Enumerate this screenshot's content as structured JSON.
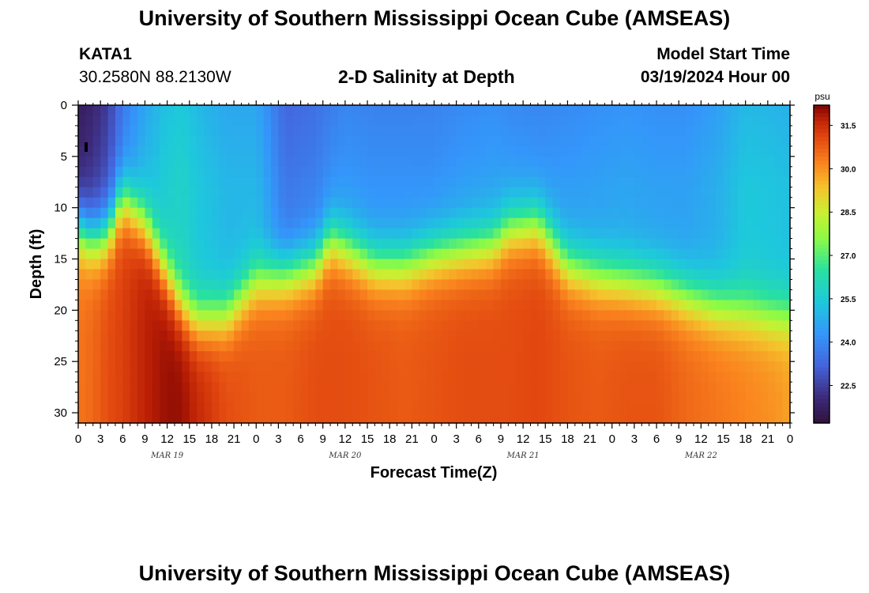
{
  "header": {
    "title": "University of Southern Mississippi Ocean Cube (AMSEAS)",
    "station_id": "KATA1",
    "station_coords": "30.2580N  88.2130W",
    "plot_subtitle": "2-D Salinity at Depth",
    "model_start_label": "Model Start Time",
    "model_start_value": "03/19/2024 Hour 00"
  },
  "footer": {
    "title": "University of Southern Mississippi Ocean Cube (AMSEAS)"
  },
  "colors": {
    "background": "#ffffff",
    "axis": "#000000"
  },
  "chart_data": {
    "type": "heatmap",
    "title": "2-D Salinity at Depth",
    "xlabel": "Forecast Time(Z)",
    "ylabel": "Depth (ft)",
    "x_range_hours": [
      0,
      96
    ],
    "ylim": [
      0,
      31
    ],
    "x_tick_labels": [
      "0",
      "3",
      "6",
      "9",
      "12",
      "15",
      "18",
      "21",
      "0",
      "3",
      "6",
      "9",
      "12",
      "15",
      "18",
      "21",
      "0",
      "3",
      "6",
      "9",
      "12",
      "15",
      "18",
      "21",
      "0",
      "3",
      "6",
      "9",
      "12",
      "15",
      "18",
      "21",
      "0"
    ],
    "x_tick_hours": [
      0,
      3,
      6,
      9,
      12,
      15,
      18,
      21,
      24,
      27,
      30,
      33,
      36,
      39,
      42,
      45,
      48,
      51,
      54,
      57,
      60,
      63,
      66,
      69,
      72,
      75,
      78,
      81,
      84,
      87,
      90,
      93,
      96
    ],
    "date_labels": [
      {
        "label": "MAR 19",
        "hour": 12
      },
      {
        "label": "MAR 20",
        "hour": 36
      },
      {
        "label": "MAR 21",
        "hour": 60
      },
      {
        "label": "MAR 22",
        "hour": 84
      }
    ],
    "y_ticks": [
      0,
      5,
      10,
      15,
      20,
      25,
      30
    ],
    "y_tick_labels": [
      "0",
      "5",
      "10",
      "15",
      "20",
      "25",
      "30"
    ],
    "colorbar": {
      "unit": "psu",
      "range": [
        21.2,
        32.2
      ],
      "ticks": [
        31.5,
        30.0,
        28.5,
        27.0,
        25.5,
        24.0,
        22.5
      ],
      "tick_labels": [
        "31.5",
        "30.0",
        "28.5",
        "27.0",
        "25.5",
        "24.0",
        "22.5"
      ]
    },
    "profile": {
      "hours": [
        0,
        2,
        4,
        6,
        9,
        12,
        14,
        16,
        20,
        24,
        28,
        32,
        34,
        36,
        40,
        44,
        48,
        52,
        56,
        58,
        62,
        66,
        70,
        74,
        78,
        82,
        86,
        90,
        94,
        96
      ],
      "halocline_ft": [
        12.0,
        13.0,
        12.5,
        9.0,
        11.5,
        16.5,
        19.5,
        21.0,
        20.5,
        17.0,
        16.5,
        15.5,
        13.0,
        13.8,
        15.5,
        15.5,
        14.5,
        14.0,
        13.5,
        12.0,
        11.5,
        15.5,
        16.5,
        17.0,
        17.5,
        18.5,
        19.5,
        20.0,
        20.5,
        20.5
      ],
      "surface_psu": [
        22.0,
        22.3,
        22.8,
        24.0,
        25.0,
        25.6,
        25.8,
        25.4,
        25.0,
        25.0,
        23.6,
        23.8,
        24.1,
        24.3,
        24.2,
        24.2,
        24.2,
        24.4,
        24.5,
        24.4,
        24.3,
        24.4,
        24.5,
        24.6,
        24.5,
        24.5,
        24.8,
        25.4,
        25.3,
        25.2
      ],
      "bottom_psu": [
        30.4,
        30.6,
        31.0,
        31.2,
        31.7,
        32.0,
        32.0,
        31.6,
        31.0,
        30.8,
        30.8,
        31.0,
        31.0,
        31.0,
        30.9,
        30.8,
        30.9,
        31.0,
        31.0,
        31.0,
        31.1,
        30.9,
        30.8,
        30.9,
        30.9,
        30.6,
        30.4,
        30.2,
        30.0,
        29.8
      ]
    }
  }
}
